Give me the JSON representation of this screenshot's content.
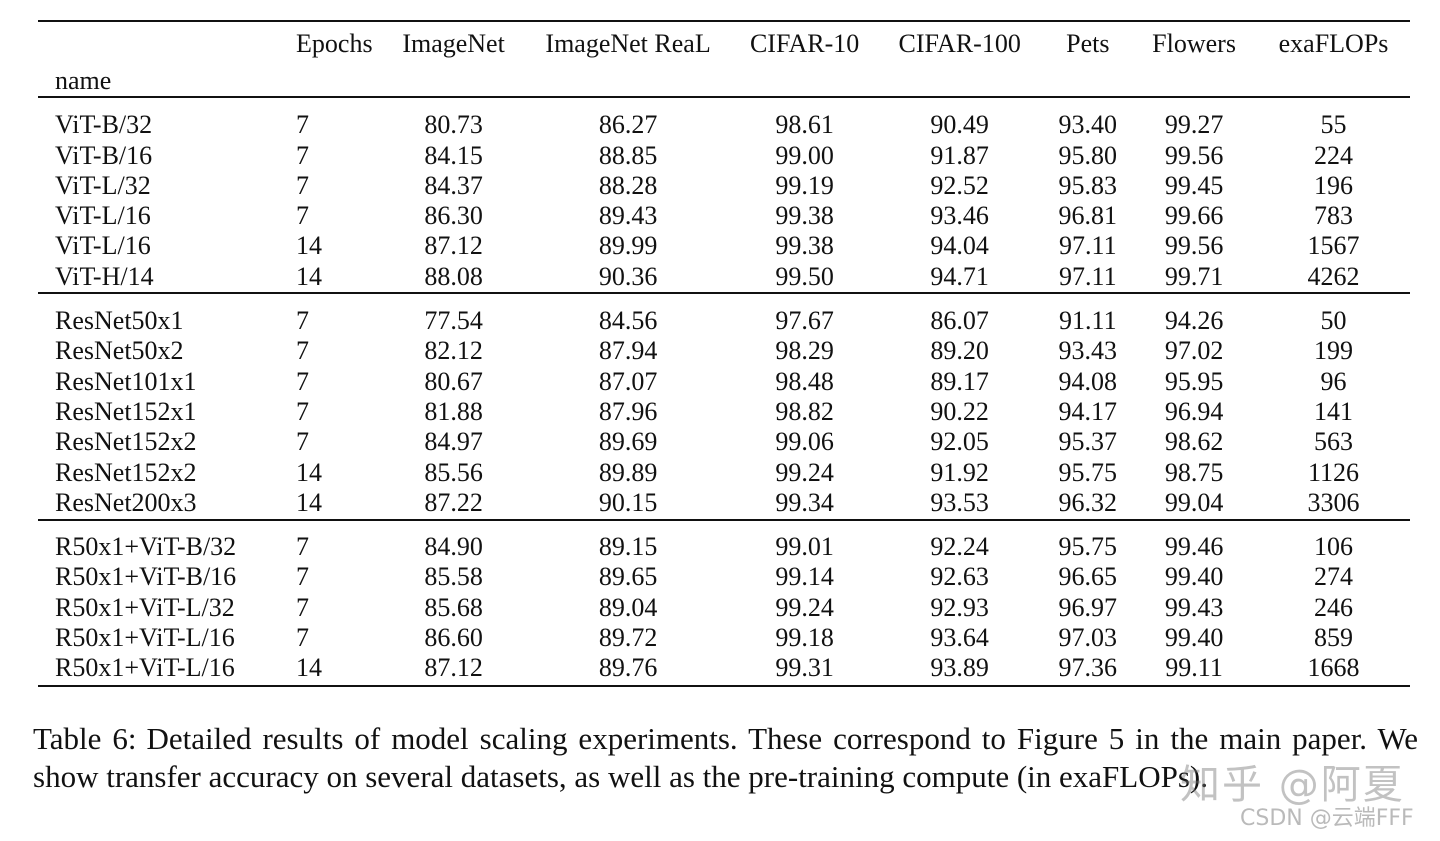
{
  "table": {
    "header": {
      "name": "name",
      "epochs": "Epochs",
      "imagenet": "ImageNet",
      "imagenet_real": "ImageNet ReaL",
      "cifar10": "CIFAR-10",
      "cifar100": "CIFAR-100",
      "pets": "Pets",
      "flowers": "Flowers",
      "exaflops": "exaFLOPs"
    },
    "groups": [
      {
        "rows": [
          [
            "ViT-B/32",
            "7",
            "80.73",
            "86.27",
            "98.61",
            "90.49",
            "93.40",
            "99.27",
            "55"
          ],
          [
            "ViT-B/16",
            "7",
            "84.15",
            "88.85",
            "99.00",
            "91.87",
            "95.80",
            "99.56",
            "224"
          ],
          [
            "ViT-L/32",
            "7",
            "84.37",
            "88.28",
            "99.19",
            "92.52",
            "95.83",
            "99.45",
            "196"
          ],
          [
            "ViT-L/16",
            "7",
            "86.30",
            "89.43",
            "99.38",
            "93.46",
            "96.81",
            "99.66",
            "783"
          ],
          [
            "ViT-L/16",
            "14",
            "87.12",
            "89.99",
            "99.38",
            "94.04",
            "97.11",
            "99.56",
            "1567"
          ],
          [
            "ViT-H/14",
            "14",
            "88.08",
            "90.36",
            "99.50",
            "94.71",
            "97.11",
            "99.71",
            "4262"
          ]
        ]
      },
      {
        "rows": [
          [
            "ResNet50x1",
            "7",
            "77.54",
            "84.56",
            "97.67",
            "86.07",
            "91.11",
            "94.26",
            "50"
          ],
          [
            "ResNet50x2",
            "7",
            "82.12",
            "87.94",
            "98.29",
            "89.20",
            "93.43",
            "97.02",
            "199"
          ],
          [
            "ResNet101x1",
            "7",
            "80.67",
            "87.07",
            "98.48",
            "89.17",
            "94.08",
            "95.95",
            "96"
          ],
          [
            "ResNet152x1",
            "7",
            "81.88",
            "87.96",
            "98.82",
            "90.22",
            "94.17",
            "96.94",
            "141"
          ],
          [
            "ResNet152x2",
            "7",
            "84.97",
            "89.69",
            "99.06",
            "92.05",
            "95.37",
            "98.62",
            "563"
          ],
          [
            "ResNet152x2",
            "14",
            "85.56",
            "89.89",
            "99.24",
            "91.92",
            "95.75",
            "98.75",
            "1126"
          ],
          [
            "ResNet200x3",
            "14",
            "87.22",
            "90.15",
            "99.34",
            "93.53",
            "96.32",
            "99.04",
            "3306"
          ]
        ]
      },
      {
        "rows": [
          [
            "R50x1+ViT-B/32",
            "7",
            "84.90",
            "89.15",
            "99.01",
            "92.24",
            "95.75",
            "99.46",
            "106"
          ],
          [
            "R50x1+ViT-B/16",
            "7",
            "85.58",
            "89.65",
            "99.14",
            "92.63",
            "96.65",
            "99.40",
            "274"
          ],
          [
            "R50x1+ViT-L/32",
            "7",
            "85.68",
            "89.04",
            "99.24",
            "92.93",
            "96.97",
            "99.43",
            "246"
          ],
          [
            "R50x1+ViT-L/16",
            "7",
            "86.60",
            "89.72",
            "99.18",
            "93.64",
            "97.03",
            "99.40",
            "859"
          ],
          [
            "R50x1+ViT-L/16",
            "14",
            "87.12",
            "89.76",
            "99.31",
            "93.89",
            "97.36",
            "99.11",
            "1668"
          ]
        ]
      }
    ]
  },
  "caption": {
    "label": "Table 6:",
    "text": "Detailed results of model scaling experiments. These correspond to Figure 5 in the main paper. We show transfer accuracy on several datasets, as well as the pre-training compute (in exaFLOPs)."
  },
  "watermark": {
    "zhihu": "知乎 @阿夏",
    "csdn": "CSDN @云端FFF"
  }
}
